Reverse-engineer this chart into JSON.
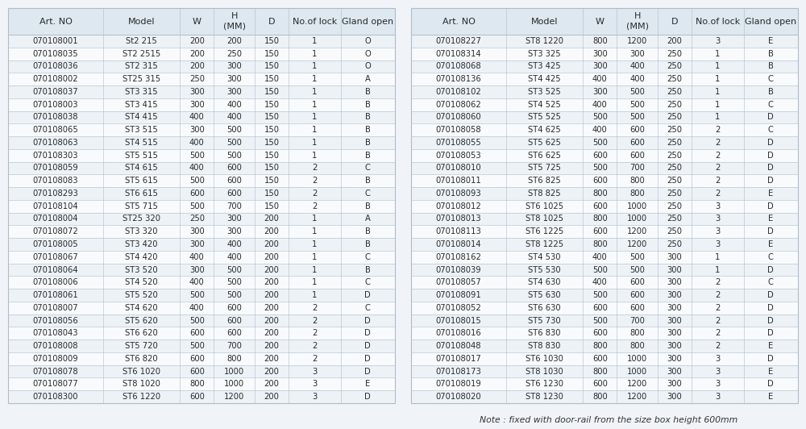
{
  "headers": [
    "Art. NO",
    "Model",
    "W",
    "H\n(MM)",
    "D",
    "No.of lock",
    "Gland open"
  ],
  "left_table": [
    [
      "070108001",
      "St2 215",
      "200",
      "200",
      "150",
      "1",
      "O"
    ],
    [
      "070108035",
      "ST2 2515",
      "200",
      "250",
      "150",
      "1",
      "O"
    ],
    [
      "070108036",
      "ST2 315",
      "200",
      "300",
      "150",
      "1",
      "O"
    ],
    [
      "070108002",
      "ST25 315",
      "250",
      "300",
      "150",
      "1",
      "A"
    ],
    [
      "070108037",
      "ST3 315",
      "300",
      "300",
      "150",
      "1",
      "B"
    ],
    [
      "070108003",
      "ST3 415",
      "300",
      "400",
      "150",
      "1",
      "B"
    ],
    [
      "070108038",
      "ST4 415",
      "400",
      "400",
      "150",
      "1",
      "B"
    ],
    [
      "070108065",
      "ST3 515",
      "300",
      "500",
      "150",
      "1",
      "B"
    ],
    [
      "070108063",
      "ST4 515",
      "400",
      "500",
      "150",
      "1",
      "B"
    ],
    [
      "070108303",
      "ST5 515",
      "500",
      "500",
      "150",
      "1",
      "B"
    ],
    [
      "070108059",
      "ST4 615",
      "400",
      "600",
      "150",
      "2",
      "C"
    ],
    [
      "070108083",
      "ST5 615",
      "500",
      "600",
      "150",
      "2",
      "B"
    ],
    [
      "070108293",
      "ST6 615",
      "600",
      "600",
      "150",
      "2",
      "C"
    ],
    [
      "070108104",
      "ST5 715",
      "500",
      "700",
      "150",
      "2",
      "B"
    ],
    [
      "070108004",
      "ST25 320",
      "250",
      "300",
      "200",
      "1",
      "A"
    ],
    [
      "070108072",
      "ST3 320",
      "300",
      "300",
      "200",
      "1",
      "B"
    ],
    [
      "070108005",
      "ST3 420",
      "300",
      "400",
      "200",
      "1",
      "B"
    ],
    [
      "070108067",
      "ST4 420",
      "400",
      "400",
      "200",
      "1",
      "C"
    ],
    [
      "070108064",
      "ST3 520",
      "300",
      "500",
      "200",
      "1",
      "B"
    ],
    [
      "070108006",
      "ST4 520",
      "400",
      "500",
      "200",
      "1",
      "C"
    ],
    [
      "070108061",
      "ST5 520",
      "500",
      "500",
      "200",
      "1",
      "D"
    ],
    [
      "070108007",
      "ST4 620",
      "400",
      "600",
      "200",
      "2",
      "C"
    ],
    [
      "070108056",
      "ST5 620",
      "500",
      "600",
      "200",
      "2",
      "D"
    ],
    [
      "070108043",
      "ST6 620",
      "600",
      "600",
      "200",
      "2",
      "D"
    ],
    [
      "070108008",
      "ST5 720",
      "500",
      "700",
      "200",
      "2",
      "D"
    ],
    [
      "070108009",
      "ST6 820",
      "600",
      "800",
      "200",
      "2",
      "D"
    ],
    [
      "070108078",
      "ST6 1020",
      "600",
      "1000",
      "200",
      "3",
      "D"
    ],
    [
      "070108077",
      "ST8 1020",
      "800",
      "1000",
      "200",
      "3",
      "E"
    ],
    [
      "070108300",
      "ST6 1220",
      "600",
      "1200",
      "200",
      "3",
      "D"
    ]
  ],
  "right_table": [
    [
      "070108227",
      "ST8 1220",
      "800",
      "1200",
      "200",
      "3",
      "E"
    ],
    [
      "070108314",
      "ST3 325",
      "300",
      "300",
      "250",
      "1",
      "B"
    ],
    [
      "070108068",
      "ST3 425",
      "300",
      "400",
      "250",
      "1",
      "B"
    ],
    [
      "070108136",
      "ST4 425",
      "400",
      "400",
      "250",
      "1",
      "C"
    ],
    [
      "070108102",
      "ST3 525",
      "300",
      "500",
      "250",
      "1",
      "B"
    ],
    [
      "070108062",
      "ST4 525",
      "400",
      "500",
      "250",
      "1",
      "C"
    ],
    [
      "070108060",
      "ST5 525",
      "500",
      "500",
      "250",
      "1",
      "D"
    ],
    [
      "070108058",
      "ST4 625",
      "400",
      "600",
      "250",
      "2",
      "C"
    ],
    [
      "070108055",
      "ST5 625",
      "500",
      "600",
      "250",
      "2",
      "D"
    ],
    [
      "070108053",
      "ST6 625",
      "600",
      "600",
      "250",
      "2",
      "D"
    ],
    [
      "070108010",
      "ST5 725",
      "500",
      "700",
      "250",
      "2",
      "D"
    ],
    [
      "070108011",
      "ST6 825",
      "600",
      "800",
      "250",
      "2",
      "D"
    ],
    [
      "070108093",
      "ST8 825",
      "800",
      "800",
      "250",
      "2",
      "E"
    ],
    [
      "070108012",
      "ST6 1025",
      "600",
      "1000",
      "250",
      "3",
      "D"
    ],
    [
      "070108013",
      "ST8 1025",
      "800",
      "1000",
      "250",
      "3",
      "E"
    ],
    [
      "070108113",
      "ST6 1225",
      "600",
      "1200",
      "250",
      "3",
      "D"
    ],
    [
      "070108014",
      "ST8 1225",
      "800",
      "1200",
      "250",
      "3",
      "E"
    ],
    [
      "070108162",
      "ST4 530",
      "400",
      "500",
      "300",
      "1",
      "C"
    ],
    [
      "070108039",
      "ST5 530",
      "500",
      "500",
      "300",
      "1",
      "D"
    ],
    [
      "070108057",
      "ST4 630",
      "400",
      "600",
      "300",
      "2",
      "C"
    ],
    [
      "070108091",
      "ST5 630",
      "500",
      "600",
      "300",
      "2",
      "D"
    ],
    [
      "070108052",
      "ST6 630",
      "600",
      "600",
      "300",
      "2",
      "D"
    ],
    [
      "070108015",
      "ST5 730",
      "500",
      "700",
      "300",
      "2",
      "D"
    ],
    [
      "070108016",
      "ST6 830",
      "600",
      "800",
      "300",
      "2",
      "D"
    ],
    [
      "070108048",
      "ST8 830",
      "800",
      "800",
      "300",
      "2",
      "E"
    ],
    [
      "070108017",
      "ST6 1030",
      "600",
      "1000",
      "300",
      "3",
      "D"
    ],
    [
      "070108173",
      "ST8 1030",
      "800",
      "1000",
      "300",
      "3",
      "E"
    ],
    [
      "070108019",
      "ST6 1230",
      "600",
      "1200",
      "300",
      "3",
      "D"
    ],
    [
      "070108020",
      "ST8 1230",
      "800",
      "1200",
      "300",
      "3",
      "E"
    ]
  ],
  "note": "Note : fixed with door-rail from the size box height 600mm",
  "bg_color": "#f0f4f8",
  "table_bg": "#f4f7fa",
  "header_bg": "#dde8f0",
  "row_bg_even": "#edf2f7",
  "row_bg_odd": "#f8fafc",
  "border_color": "#b0bcc8",
  "text_color": "#2a2a2a",
  "header_color": "#2a2a2a",
  "note_color": "#333333",
  "font_size": 7.2,
  "header_font_size": 8.0,
  "col_widths_rel": [
    2.1,
    1.7,
    0.75,
    0.9,
    0.75,
    1.15,
    1.2
  ]
}
